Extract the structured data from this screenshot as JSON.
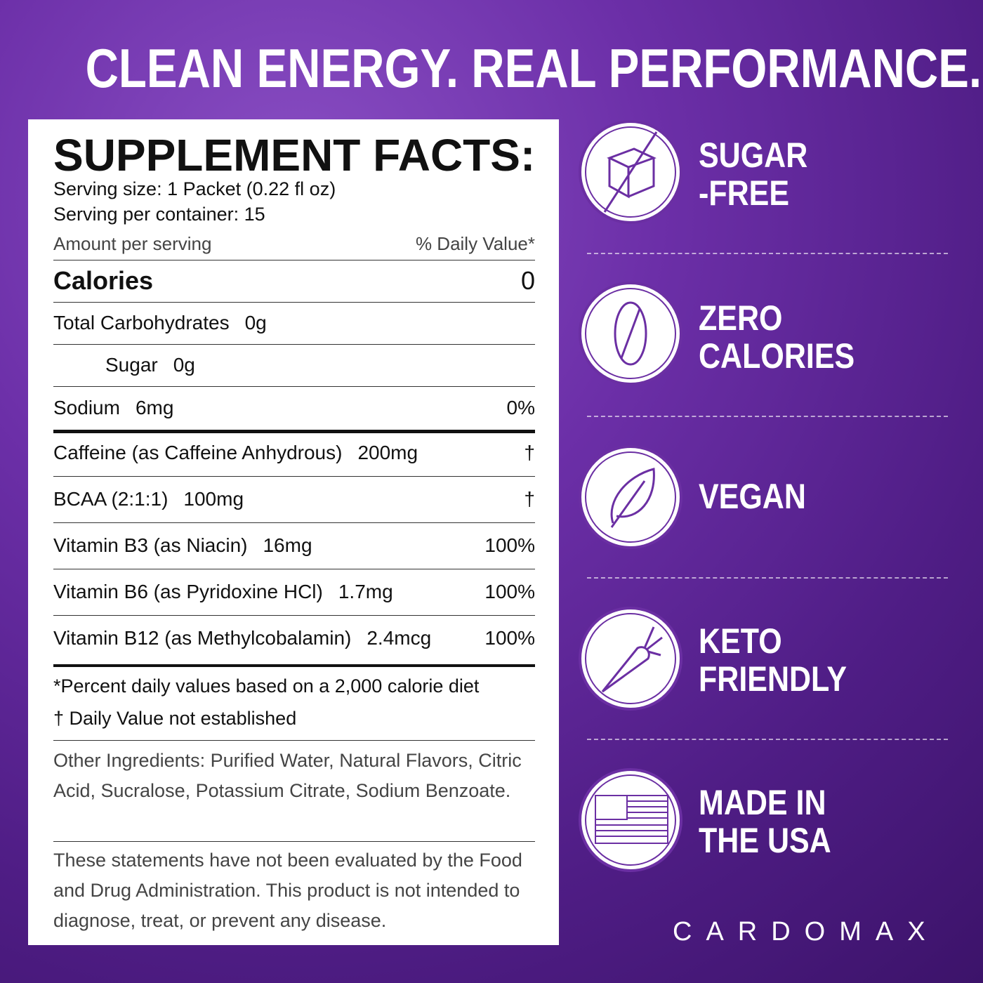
{
  "headline": "CLEAN ENERGY. REAL PERFORMANCE.",
  "facts": {
    "title": "SUPPLEMENT FACTS:",
    "serving_size": "Serving size: 1 Packet (0.22 fl oz)",
    "servings": "Serving per container: 15",
    "amount_header": "Amount per serving",
    "dv_header": "% Daily Value*",
    "rows": [
      {
        "name": "Calories",
        "dv": "0"
      },
      {
        "name": "Total Carbohydrates",
        "amount": "0g"
      },
      {
        "name": "Sugar",
        "amount": "0g"
      },
      {
        "name": "Sodium",
        "amount": "6mg",
        "dv": "0%"
      },
      {
        "name": "Caffeine (as Caffeine Anhydrous)",
        "amount": "200mg",
        "dv": "†"
      },
      {
        "name": "BCAA (2:1:1)",
        "amount": "100mg",
        "dv": "†"
      },
      {
        "name": "Vitamin B3 (as Niacin)",
        "amount": "16mg",
        "dv": "100%"
      },
      {
        "name": "Vitamin B6 (as Pyridoxine HCl)",
        "amount": "1.7mg",
        "dv": "100%"
      },
      {
        "name": "Vitamin B12 (as Methylcobalamin)",
        "amount": "2.4mcg",
        "dv": "100%"
      }
    ],
    "footnotes": [
      "*Percent daily values based on a 2,000 calorie diet",
      "† Daily Value not established"
    ],
    "other_ingredients": "Other Ingredients: Purified Water, Natural Flavors, Citric Acid, Sucralose, Potassium Citrate, Sodium Benzoate.",
    "disclaimer": "These statements have not been evaluated by the Food and Drug Administration. This product is not intended to diagnose, treat, or prevent any disease."
  },
  "badges": [
    {
      "lines": [
        "SUGAR",
        "-FREE"
      ]
    },
    {
      "lines": [
        "ZERO",
        "CALORIES"
      ]
    },
    {
      "lines": [
        "VEGAN"
      ]
    },
    {
      "lines": [
        "KETO",
        "FRIENDLY"
      ]
    },
    {
      "lines": [
        "MADE IN",
        "THE USA"
      ]
    }
  ],
  "brand": "CARDOMAX"
}
